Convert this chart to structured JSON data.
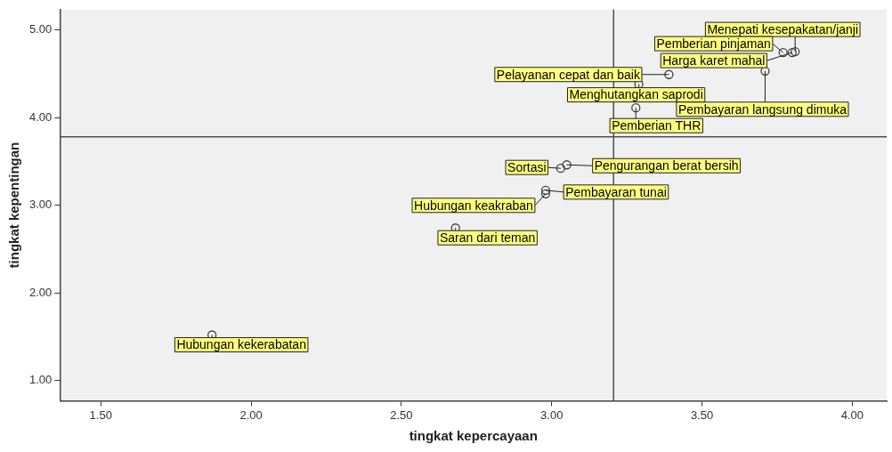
{
  "chart_data": {
    "type": "scatter",
    "xlabel": "tingkat kepercayaan",
    "ylabel": "tingkat kepentingan",
    "x": [
      3.81,
      3.77,
      3.8,
      3.39,
      3.29,
      3.71,
      3.28,
      3.03,
      3.05,
      2.98,
      2.98,
      2.68,
      1.87
    ],
    "series": [
      {
        "color": "#404040",
        "values": [
          4.75,
          4.74,
          4.74,
          4.49,
          4.38,
          4.53,
          4.11,
          3.42,
          3.46,
          3.17,
          3.13,
          2.74,
          1.52
        ]
      }
    ],
    "marker": "circle",
    "grid": false,
    "legend": false,
    "xlim": [
      1.364,
      4.115
    ],
    "ylim": [
      0.77,
      5.23
    ],
    "xticks": [
      {
        "value": 1.5,
        "label": "1.50"
      },
      {
        "value": 2,
        "label": "2.00"
      },
      {
        "value": 2.5,
        "label": "2.50"
      },
      {
        "value": 3,
        "label": "3.00"
      },
      {
        "value": 3.5,
        "label": "3.50"
      },
      {
        "value": 4,
        "label": "4.00"
      }
    ],
    "yticks": [
      {
        "value": 1,
        "label": "1.00"
      },
      {
        "value": 2,
        "label": "2.00"
      },
      {
        "value": 3,
        "label": "3.00"
      },
      {
        "value": 4,
        "label": "4.00"
      },
      {
        "value": 5,
        "label": "5.00"
      }
    ],
    "ref_lines": [
      {
        "axis": "x",
        "value": 3.206,
        "color": "#505050"
      },
      {
        "axis": "y",
        "value": 3.78,
        "color": "#505050"
      }
    ],
    "annotations": [
      {
        "text": "Menepati kesepakatan/janji",
        "x": 3.81,
        "y": 4.75
      },
      {
        "text": "Pemberian pinjaman",
        "x": 3.77,
        "y": 4.74
      },
      {
        "text": "Harga karet mahal",
        "x": 3.8,
        "y": 4.74
      },
      {
        "text": "Pelayanan cepat dan baik",
        "x": 3.39,
        "y": 4.49
      },
      {
        "text": "Menghutangkan saprodi",
        "x": 3.29,
        "y": 4.38
      },
      {
        "text": "Pembayaran langsung dimuka",
        "x": 3.71,
        "y": 4.53
      },
      {
        "text": "Pemberian THR",
        "x": 3.28,
        "y": 4.11
      },
      {
        "text": "Sortasi",
        "x": 3.03,
        "y": 3.42
      },
      {
        "text": "Pengurangan berat bersih",
        "x": 3.05,
        "y": 3.46
      },
      {
        "text": "Pembayaran tunai",
        "x": 2.98,
        "y": 3.17
      },
      {
        "text": "Hubungan keakraban",
        "x": 2.98,
        "y": 3.13
      },
      {
        "text": "Saran dari teman",
        "x": 2.68,
        "y": 2.74
      },
      {
        "text": "Hubungan kekerabatan",
        "x": 1.87,
        "y": 1.52
      }
    ]
  }
}
